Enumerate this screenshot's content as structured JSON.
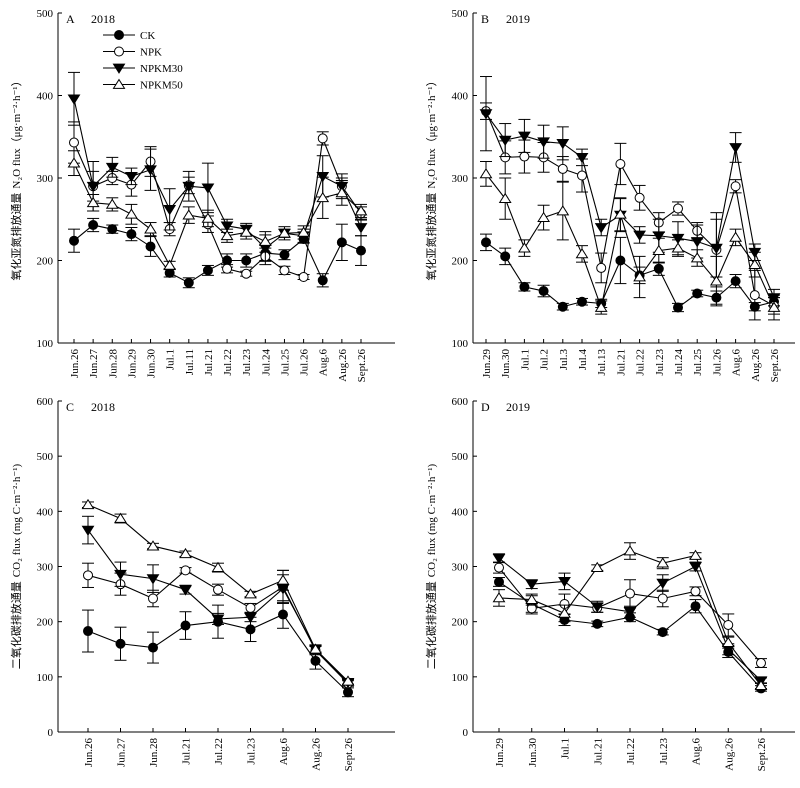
{
  "legend": [
    "CK",
    "NPK",
    "NPKM30",
    "NPKM50"
  ],
  "chart_data": [
    {
      "type": "line",
      "panel": "A",
      "year": "2018",
      "ylabel": "氧化亚氮排放通量 N₂O flux（μg·m⁻²·h⁻¹）",
      "ylim": [
        100,
        500
      ],
      "yticks": [
        100,
        200,
        300,
        400,
        500
      ],
      "categories": [
        "Jun.26",
        "Jun.27",
        "Jun.28",
        "Jun.29",
        "Jun.30",
        "Jul.1",
        "Jul.11",
        "Jul.21",
        "Jul.22",
        "Jul.23",
        "Jul.24",
        "Jul.25",
        "Jul.26",
        "Aug.6",
        "Aug.26",
        "Sept.26"
      ],
      "legend_placement": "top-left",
      "series": [
        {
          "name": "CK",
          "values": [
            224,
            243,
            238,
            232,
            217,
            185,
            173,
            188,
            200,
            200,
            209,
            207,
            226,
            176,
            222,
            212
          ],
          "errors": [
            14,
            8,
            5,
            8,
            12,
            5,
            6,
            6,
            8,
            8,
            10,
            6,
            5,
            8,
            22,
            18
          ]
        },
        {
          "name": "NPK",
          "values": [
            343,
            290,
            300,
            292,
            320,
            238,
            291,
            244,
            190,
            184,
            205,
            188,
            180,
            348,
            290,
            257
          ],
          "errors": [
            25,
            18,
            8,
            14,
            18,
            8,
            10,
            10,
            5,
            3,
            5,
            5,
            3,
            8,
            10,
            8
          ]
        },
        {
          "name": "NPKM30",
          "values": [
            396,
            290,
            313,
            302,
            310,
            262,
            290,
            288,
            242,
            238,
            215,
            233,
            230,
            302,
            290,
            240
          ],
          "errors": [
            32,
            30,
            12,
            10,
            25,
            25,
            18,
            30,
            8,
            7,
            20,
            5,
            8,
            25,
            15,
            10
          ]
        },
        {
          "name": "NPKM50",
          "values": [
            318,
            270,
            268,
            256,
            238,
            194,
            255,
            251,
            230,
            234,
            223,
            233,
            234,
            276,
            282,
            260
          ],
          "errors": [
            15,
            10,
            8,
            12,
            8,
            5,
            10,
            10,
            8,
            8,
            8,
            8,
            8,
            25,
            15,
            8
          ]
        }
      ]
    },
    {
      "type": "line",
      "panel": "B",
      "year": "2019",
      "ylabel": "氧化亚氮排放通量 N₂O flux（μg·m⁻²·h⁻¹）",
      "ylim": [
        100,
        500
      ],
      "yticks": [
        100,
        200,
        300,
        400,
        500
      ],
      "categories": [
        "Jun.29",
        "Jun.30",
        "Jul.1",
        "Jul.2",
        "Jul.3",
        "Jul.4",
        "Jul.13",
        "Jul.21",
        "Jul.22",
        "Jul.23",
        "Jul.24",
        "Jul.25",
        "Jul.26",
        "Aug.6",
        "Aug.26",
        "Sept.26"
      ],
      "series": [
        {
          "name": "CK",
          "values": [
            222,
            205,
            168,
            163,
            144,
            150,
            148,
            200,
            182,
            190,
            143,
            160,
            155,
            175,
            144,
            150
          ],
          "errors": [
            10,
            10,
            5,
            7,
            4,
            4,
            5,
            28,
            10,
            8,
            5,
            4,
            8,
            8,
            5,
            5
          ]
        },
        {
          "name": "NPK",
          "values": [
            381,
            325,
            326,
            325,
            311,
            303,
            191,
            317,
            276,
            246,
            263,
            236,
            213,
            290,
            158,
            145
          ],
          "errors": [
            10,
            20,
            20,
            18,
            15,
            20,
            18,
            25,
            15,
            12,
            8,
            10,
            45,
            8,
            30,
            10
          ]
        },
        {
          "name": "NPKM30",
          "values": [
            378,
            346,
            351,
            344,
            342,
            325,
            240,
            255,
            231,
            230,
            227,
            223,
            215,
            337,
            210,
            155
          ],
          "errors": [
            45,
            20,
            20,
            20,
            20,
            10,
            10,
            20,
            10,
            20,
            20,
            20,
            35,
            18,
            10,
            10
          ]
        },
        {
          "name": "NPKM50",
          "values": [
            305,
            275,
            215,
            252,
            260,
            208,
            143,
            256,
            180,
            212,
            215,
            203,
            175,
            228,
            195,
            143
          ],
          "errors": [
            15,
            25,
            10,
            15,
            35,
            10,
            8,
            20,
            25,
            15,
            10,
            10,
            30,
            10,
            15,
            15
          ]
        }
      ]
    },
    {
      "type": "line",
      "panel": "C",
      "year": "2018",
      "ylabel": "二氧化碳排放通量 CO₂ flux (mg C·m⁻²·h⁻¹)",
      "ylim": [
        0,
        600
      ],
      "yticks": [
        0,
        100,
        200,
        300,
        400,
        500,
        600
      ],
      "categories": [
        "Jun.26",
        "Jun.27",
        "Jun.28",
        "Jul.21",
        "Jul.22",
        "Jul.23",
        "Aug.6",
        "Aug.26",
        "Sept.26"
      ],
      "series": [
        {
          "name": "CK",
          "values": [
            183,
            160,
            153,
            193,
            200,
            186,
            213,
            129,
            72
          ],
          "errors": [
            38,
            30,
            28,
            25,
            30,
            22,
            25,
            15,
            8
          ]
        },
        {
          "name": "NPK",
          "values": [
            284,
            268,
            242,
            293,
            258,
            225,
            263,
            148,
            88
          ],
          "errors": [
            22,
            20,
            15,
            5,
            10,
            8,
            30,
            8,
            5
          ]
        },
        {
          "name": "NPKM30",
          "values": [
            366,
            286,
            278,
            258,
            205,
            208,
            260,
            150,
            90
          ],
          "errors": [
            25,
            22,
            25,
            8,
            10,
            8,
            25,
            8,
            5
          ]
        },
        {
          "name": "NPKM50",
          "values": [
            412,
            387,
            337,
            323,
            298,
            250,
            275,
            150,
            92
          ],
          "errors": [
            5,
            8,
            5,
            5,
            8,
            5,
            18,
            5,
            5
          ]
        }
      ]
    },
    {
      "type": "line",
      "panel": "D",
      "year": "2019",
      "ylabel": "二氧化碳排放通量 CO₂ flux (mg C·m⁻²·h⁻¹)",
      "ylim": [
        0,
        600
      ],
      "yticks": [
        0,
        100,
        200,
        300,
        400,
        500,
        600
      ],
      "categories": [
        "Jun.29",
        "Jun.30",
        "Jul.1",
        "Jul.21",
        "Jul.22",
        "Jul.23",
        "Aug.6",
        "Aug.26",
        "Sept.26"
      ],
      "series": [
        {
          "name": "CK",
          "values": [
            272,
            232,
            203,
            196,
            208,
            181,
            228,
            145,
            79
          ],
          "errors": [
            8,
            15,
            10,
            5,
            8,
            5,
            12,
            10,
            5
          ]
        },
        {
          "name": "NPK",
          "values": [
            298,
            224,
            232,
            225,
            251,
            242,
            255,
            194,
            125
          ],
          "errors": [
            10,
            10,
            18,
            8,
            25,
            15,
            8,
            20,
            8
          ]
        },
        {
          "name": "NPKM30",
          "values": [
            315,
            268,
            273,
            227,
            218,
            270,
            300,
            150,
            93
          ],
          "errors": [
            8,
            8,
            15,
            10,
            10,
            15,
            8,
            10,
            5
          ]
        },
        {
          "name": "NPKM50",
          "values": [
            243,
            240,
            215,
            298,
            328,
            306,
            320,
            162,
            84
          ],
          "errors": [
            15,
            10,
            15,
            5,
            15,
            10,
            5,
            10,
            5
          ]
        }
      ]
    }
  ]
}
